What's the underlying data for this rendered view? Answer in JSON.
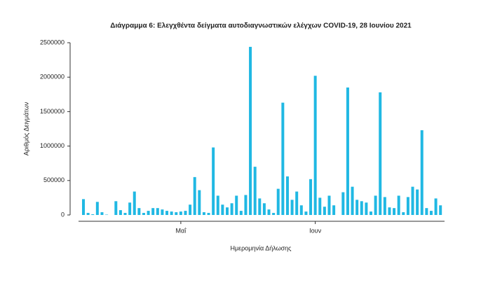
{
  "chart_data": {
    "type": "bar",
    "title": "Διάγραμμα 6: Ελεγχθέντα δείγματα αυτοδιαγνωστικών ελέγχων COVID-19, 28 Ιουνίου 2021",
    "xlabel": "Ημερομηνία Δήλωσης",
    "ylabel": "Αριθμός Δειγμάτων",
    "color": "#20b8e3",
    "categories": [
      null,
      null,
      null,
      null,
      null,
      null,
      null,
      null,
      null,
      null,
      null,
      null,
      null,
      null,
      null,
      null,
      null,
      null,
      null,
      null,
      null,
      "Μαΐ",
      null,
      null,
      null,
      null,
      null,
      null,
      null,
      null,
      null,
      null,
      null,
      null,
      null,
      null,
      null,
      null,
      null,
      null,
      null,
      null,
      null,
      null,
      null,
      null,
      null,
      null,
      null,
      null,
      "Ιουν",
      null,
      null,
      null,
      null,
      null,
      null,
      null,
      null,
      null,
      null,
      null,
      null,
      null,
      null,
      null,
      null,
      null,
      null,
      null,
      null,
      null,
      null,
      null,
      null,
      null,
      null,
      null
    ],
    "values": [
      230000,
      30000,
      10000,
      190000,
      40000,
      5000,
      0,
      200000,
      70000,
      30000,
      180000,
      340000,
      100000,
      30000,
      60000,
      100000,
      100000,
      80000,
      60000,
      50000,
      40000,
      50000,
      60000,
      150000,
      550000,
      360000,
      40000,
      30000,
      980000,
      280000,
      150000,
      110000,
      170000,
      280000,
      60000,
      290000,
      2440000,
      700000,
      240000,
      170000,
      80000,
      30000,
      380000,
      1630000,
      560000,
      220000,
      340000,
      140000,
      50000,
      520000,
      2020000,
      250000,
      120000,
      280000,
      140000,
      0,
      330000,
      1850000,
      410000,
      220000,
      200000,
      180000,
      50000,
      280000,
      1780000,
      260000,
      110000,
      100000,
      280000,
      40000,
      260000,
      410000,
      370000,
      1230000,
      100000,
      60000,
      240000,
      140000
    ],
    "ylim": [
      0,
      2500000
    ],
    "yticks": [
      0,
      500000,
      1000000,
      1500000,
      2000000,
      2500000
    ]
  }
}
